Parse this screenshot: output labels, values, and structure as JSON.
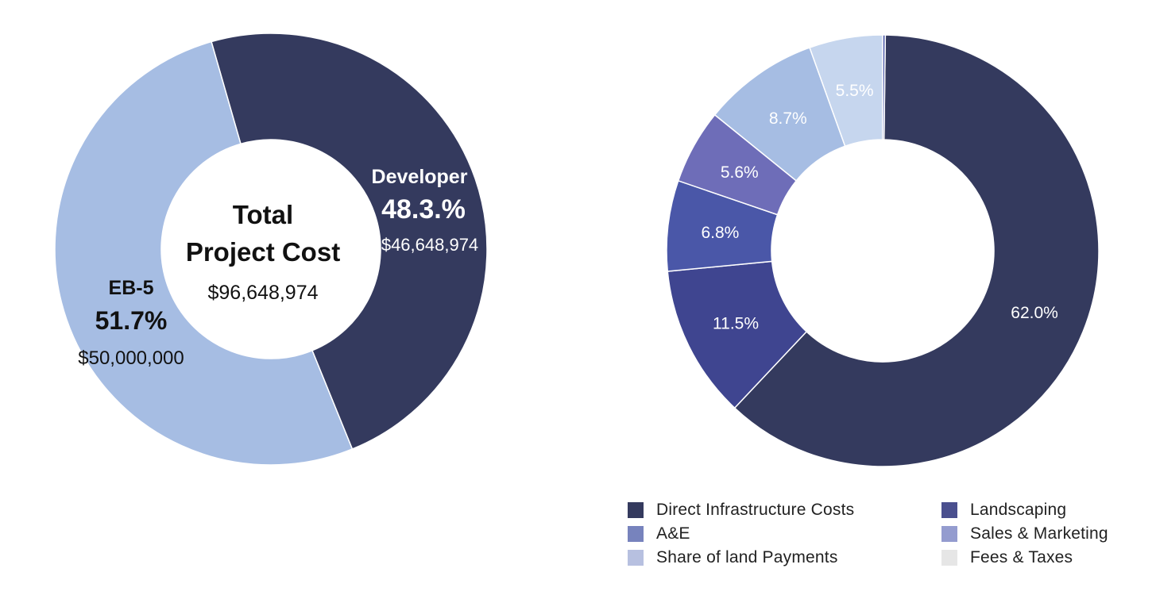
{
  "chart_data": [
    {
      "type": "pie",
      "title": "",
      "center_text": [
        "Total",
        "Project Cost",
        "$96,648,974"
      ],
      "slices": [
        {
          "name": "Developer",
          "percent": "48.3.%",
          "value": 48.3,
          "amount": "$46,648,974",
          "color": "#343a5e"
        },
        {
          "name": "EB-5",
          "percent": "51.7%",
          "value": 51.7,
          "amount": "$50,000,000",
          "color": "#a6bde3"
        }
      ]
    },
    {
      "type": "pie",
      "title": "",
      "slices": [
        {
          "label": "62.0%",
          "value": 62.0,
          "color": "#343a5e"
        },
        {
          "label": "11.5%",
          "value": 11.5,
          "color": "#3f4590"
        },
        {
          "label": "6.8%",
          "value": 6.8,
          "color": "#4a57a8"
        },
        {
          "label": "5.6%",
          "value": 5.6,
          "color": "#6e6db8"
        },
        {
          "label": "8.7%",
          "value": 8.7,
          "color": "#a6bde3"
        },
        {
          "label": "5.5%",
          "value": 5.5,
          "color": "#c6d6ee"
        },
        {
          "label": "",
          "value": 0.2,
          "color": "#5a66b0"
        }
      ],
      "legend": [
        {
          "label": "Direct Infrastructure Costs",
          "color": "#343a5e"
        },
        {
          "label": "Landscaping",
          "color": "#4a4f8e"
        },
        {
          "label": "A&E",
          "color": "#7783bd"
        },
        {
          "label": "Sales & Marketing",
          "color": "#949ccf"
        },
        {
          "label": "Share of land Payments",
          "color": "#b7c0e0"
        },
        {
          "label": "Fees & Taxes",
          "color": "#e6e6e6"
        }
      ],
      "legend_position": "bottom"
    }
  ]
}
